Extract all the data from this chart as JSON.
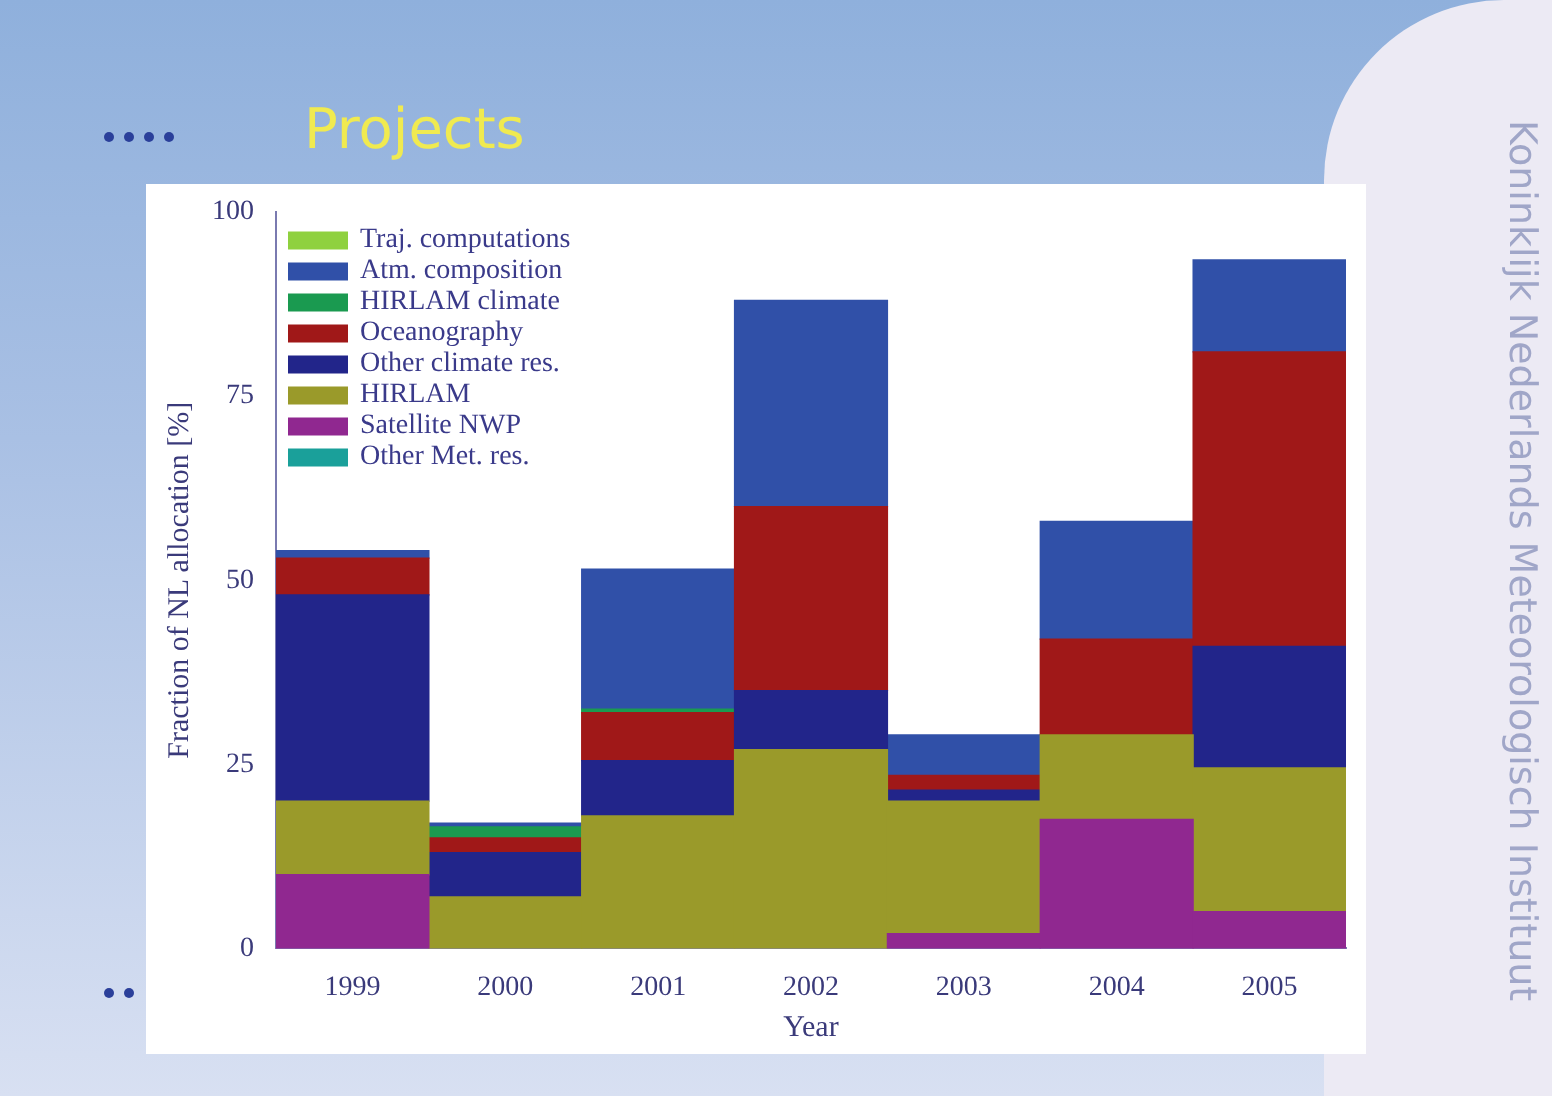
{
  "chart_data": {
    "type": "bar",
    "title": "Projects",
    "xlabel": "Year",
    "ylabel": "Fraction of NL allocation [%]",
    "annotations": [
      "Koninklijk Nederlands Meteorologisch Instituut"
    ],
    "categories": [
      "1999",
      "2000",
      "2001",
      "2002",
      "2003",
      "2004",
      "2005"
    ],
    "stacked": true,
    "ylim": [
      0,
      100
    ],
    "yticks": [
      0,
      25,
      50,
      75,
      100
    ],
    "grid": false,
    "legend": "top left",
    "series": [
      {
        "name": "Other Met. res.",
        "color": "#1aa09a",
        "values": [
          null,
          null,
          null,
          null,
          null,
          null,
          null
        ]
      },
      {
        "name": "Satellite NWP",
        "color": "#902890",
        "values": [
          10,
          null,
          null,
          null,
          2,
          17.5,
          5
        ]
      },
      {
        "name": "HIRLAM",
        "color": "#9a9a2a",
        "values": [
          10,
          7,
          18,
          27,
          18,
          11.5,
          19.5
        ]
      },
      {
        "name": "Other climate res.",
        "color": "#22258a",
        "values": [
          28,
          6,
          7.5,
          8,
          1.5,
          null,
          16.5
        ]
      },
      {
        "name": "Oceanography",
        "color": "#a01818",
        "values": [
          5,
          2,
          6.5,
          25,
          2,
          13,
          40
        ]
      },
      {
        "name": "HIRLAM climate",
        "color": "#1a9a50",
        "values": [
          null,
          1.5,
          0.5,
          null,
          null,
          null,
          null
        ]
      },
      {
        "name": "Atm. composition",
        "color": "#3050a8",
        "values": [
          1,
          0.5,
          19,
          28,
          5.5,
          16,
          12.5
        ]
      },
      {
        "name": "Traj. computations",
        "color": "#8fd13f",
        "values": [
          null,
          null,
          null,
          null,
          null,
          null,
          null
        ]
      }
    ]
  }
}
